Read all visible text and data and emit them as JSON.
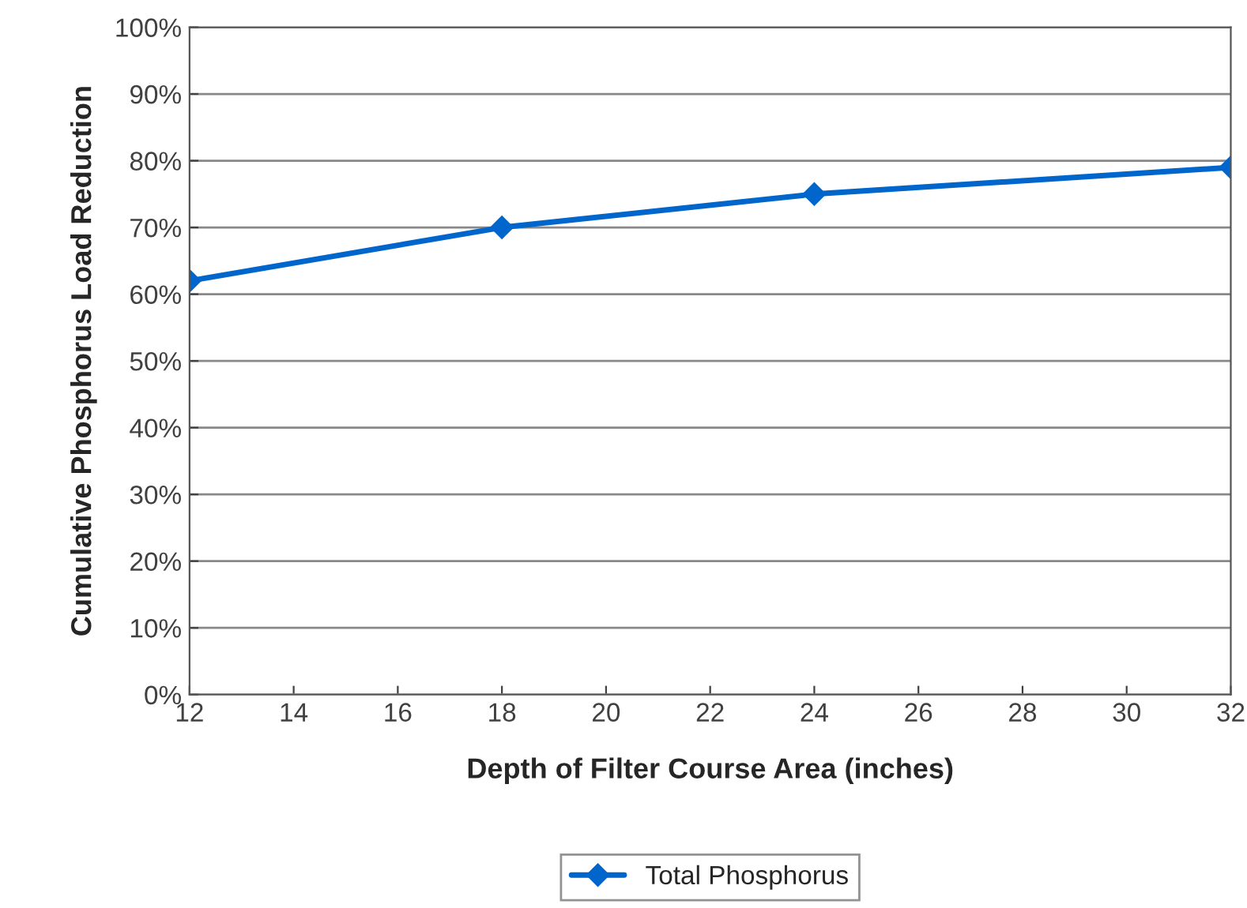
{
  "chart_data": {
    "type": "line",
    "xlabel": "Depth of Filter Course Area (inches)",
    "ylabel": "Cumulative Phosphorus Load Reduction",
    "x": [
      12,
      18,
      24,
      32
    ],
    "series": [
      {
        "name": "Total Phosphorus",
        "color": "#0066cc",
        "values": [
          62,
          70,
          75,
          79
        ]
      }
    ],
    "xlim": [
      12,
      32
    ],
    "xticks": [
      12,
      14,
      16,
      18,
      20,
      22,
      24,
      26,
      28,
      30,
      32
    ],
    "ylim": [
      0,
      100
    ],
    "yticks": [
      {
        "value": 0,
        "label": "0%"
      },
      {
        "value": 10,
        "label": "10%"
      },
      {
        "value": 20,
        "label": "20%"
      },
      {
        "value": 30,
        "label": "30%"
      },
      {
        "value": 40,
        "label": "40%"
      },
      {
        "value": 50,
        "label": "50%"
      },
      {
        "value": 60,
        "label": "60%"
      },
      {
        "value": 70,
        "label": "70%"
      },
      {
        "value": 80,
        "label": "80%"
      },
      {
        "value": 90,
        "label": "90%"
      },
      {
        "value": 100,
        "label": "100%"
      }
    ],
    "grid": "y",
    "legend": "bottom",
    "marker": "diamond",
    "line_style": "solid"
  }
}
